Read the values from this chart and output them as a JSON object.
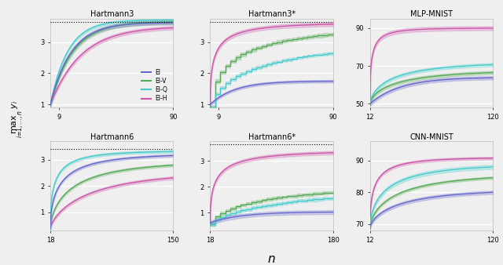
{
  "titles": [
    "Hartmann3",
    "Hartmann3*",
    "MLP-MNIST",
    "Hartmann6",
    "Hartmann6*",
    "CNN-MNIST"
  ],
  "colors": {
    "EI": "#6666cc",
    "EI-V": "#55aa55",
    "EI-Q": "#44cccc",
    "EI-H": "#cc55aa"
  },
  "alpha_fill": 0.25,
  "ylabel": "$\\max_{i=1,\\ldots,n}\\ y_i$",
  "xlabel": "$n$",
  "subplots": [
    {
      "name": "Hartmann3",
      "xlim": [
        3,
        90
      ],
      "ylim": [
        0.9,
        3.75
      ],
      "xticks": [
        9,
        90
      ],
      "yticks": [
        1,
        2,
        3
      ],
      "dotted_y": 3.65
    },
    {
      "name": "Hartmann3*",
      "xlim": [
        3,
        90
      ],
      "ylim": [
        0.9,
        3.75
      ],
      "xticks": [
        9,
        90
      ],
      "yticks": [
        1,
        2,
        3
      ],
      "dotted_y": 3.65
    },
    {
      "name": "MLP-MNIST",
      "xlim": [
        12,
        120
      ],
      "ylim": [
        48,
        95
      ],
      "xticks": [
        12,
        120
      ],
      "yticks": [
        50,
        70,
        90
      ],
      "dotted_y": null
    },
    {
      "name": "Hartmann6",
      "xlim": [
        18,
        150
      ],
      "ylim": [
        0.3,
        3.7
      ],
      "xticks": [
        18,
        150
      ],
      "yticks": [
        1,
        2,
        3
      ],
      "dotted_y": 3.4
    },
    {
      "name": "Hartmann6*",
      "xlim": [
        18,
        180
      ],
      "ylim": [
        0.3,
        3.75
      ],
      "xticks": [
        18,
        180
      ],
      "yticks": [
        1,
        2,
        3
      ],
      "dotted_y": 3.65
    },
    {
      "name": "CNN-MNIST",
      "xlim": [
        12,
        120
      ],
      "ylim": [
        68,
        96
      ],
      "xticks": [
        12,
        120
      ],
      "yticks": [
        70,
        80,
        90
      ],
      "dotted_y": null
    }
  ],
  "background_color": "#efefef",
  "legend_labels": [
    "EI",
    "EI-V",
    "EI-Q",
    "EI-H"
  ]
}
